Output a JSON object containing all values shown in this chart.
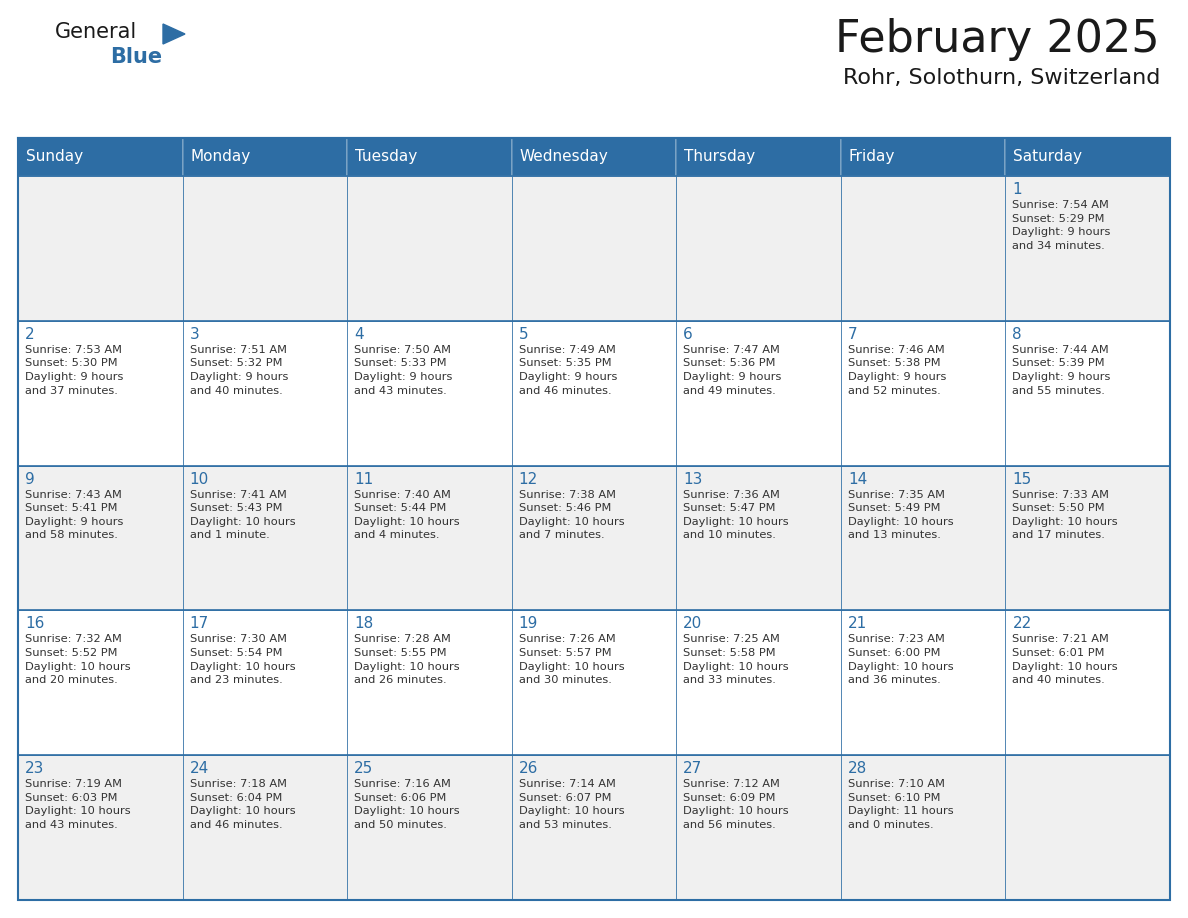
{
  "title": "February 2025",
  "subtitle": "Rohr, Solothurn, Switzerland",
  "days_of_week": [
    "Sunday",
    "Monday",
    "Tuesday",
    "Wednesday",
    "Thursday",
    "Friday",
    "Saturday"
  ],
  "header_bg": "#2d6da4",
  "header_text": "#ffffff",
  "row_bg_light": "#f0f0f0",
  "row_bg_white": "#ffffff",
  "border_color": "#2d6da4",
  "title_color": "#1a1a1a",
  "day_num_color": "#2d6da4",
  "text_color": "#333333",
  "calendar": [
    [
      null,
      null,
      null,
      null,
      null,
      null,
      {
        "day": "1",
        "sunrise": "7:54 AM",
        "sunset": "5:29 PM",
        "daylight": "9 hours\nand 34 minutes."
      }
    ],
    [
      {
        "day": "2",
        "sunrise": "7:53 AM",
        "sunset": "5:30 PM",
        "daylight": "9 hours\nand 37 minutes."
      },
      {
        "day": "3",
        "sunrise": "7:51 AM",
        "sunset": "5:32 PM",
        "daylight": "9 hours\nand 40 minutes."
      },
      {
        "day": "4",
        "sunrise": "7:50 AM",
        "sunset": "5:33 PM",
        "daylight": "9 hours\nand 43 minutes."
      },
      {
        "day": "5",
        "sunrise": "7:49 AM",
        "sunset": "5:35 PM",
        "daylight": "9 hours\nand 46 minutes."
      },
      {
        "day": "6",
        "sunrise": "7:47 AM",
        "sunset": "5:36 PM",
        "daylight": "9 hours\nand 49 minutes."
      },
      {
        "day": "7",
        "sunrise": "7:46 AM",
        "sunset": "5:38 PM",
        "daylight": "9 hours\nand 52 minutes."
      },
      {
        "day": "8",
        "sunrise": "7:44 AM",
        "sunset": "5:39 PM",
        "daylight": "9 hours\nand 55 minutes."
      }
    ],
    [
      {
        "day": "9",
        "sunrise": "7:43 AM",
        "sunset": "5:41 PM",
        "daylight": "9 hours\nand 58 minutes."
      },
      {
        "day": "10",
        "sunrise": "7:41 AM",
        "sunset": "5:43 PM",
        "daylight": "10 hours\nand 1 minute."
      },
      {
        "day": "11",
        "sunrise": "7:40 AM",
        "sunset": "5:44 PM",
        "daylight": "10 hours\nand 4 minutes."
      },
      {
        "day": "12",
        "sunrise": "7:38 AM",
        "sunset": "5:46 PM",
        "daylight": "10 hours\nand 7 minutes."
      },
      {
        "day": "13",
        "sunrise": "7:36 AM",
        "sunset": "5:47 PM",
        "daylight": "10 hours\nand 10 minutes."
      },
      {
        "day": "14",
        "sunrise": "7:35 AM",
        "sunset": "5:49 PM",
        "daylight": "10 hours\nand 13 minutes."
      },
      {
        "day": "15",
        "sunrise": "7:33 AM",
        "sunset": "5:50 PM",
        "daylight": "10 hours\nand 17 minutes."
      }
    ],
    [
      {
        "day": "16",
        "sunrise": "7:32 AM",
        "sunset": "5:52 PM",
        "daylight": "10 hours\nand 20 minutes."
      },
      {
        "day": "17",
        "sunrise": "7:30 AM",
        "sunset": "5:54 PM",
        "daylight": "10 hours\nand 23 minutes."
      },
      {
        "day": "18",
        "sunrise": "7:28 AM",
        "sunset": "5:55 PM",
        "daylight": "10 hours\nand 26 minutes."
      },
      {
        "day": "19",
        "sunrise": "7:26 AM",
        "sunset": "5:57 PM",
        "daylight": "10 hours\nand 30 minutes."
      },
      {
        "day": "20",
        "sunrise": "7:25 AM",
        "sunset": "5:58 PM",
        "daylight": "10 hours\nand 33 minutes."
      },
      {
        "day": "21",
        "sunrise": "7:23 AM",
        "sunset": "6:00 PM",
        "daylight": "10 hours\nand 36 minutes."
      },
      {
        "day": "22",
        "sunrise": "7:21 AM",
        "sunset": "6:01 PM",
        "daylight": "10 hours\nand 40 minutes."
      }
    ],
    [
      {
        "day": "23",
        "sunrise": "7:19 AM",
        "sunset": "6:03 PM",
        "daylight": "10 hours\nand 43 minutes."
      },
      {
        "day": "24",
        "sunrise": "7:18 AM",
        "sunset": "6:04 PM",
        "daylight": "10 hours\nand 46 minutes."
      },
      {
        "day": "25",
        "sunrise": "7:16 AM",
        "sunset": "6:06 PM",
        "daylight": "10 hours\nand 50 minutes."
      },
      {
        "day": "26",
        "sunrise": "7:14 AM",
        "sunset": "6:07 PM",
        "daylight": "10 hours\nand 53 minutes."
      },
      {
        "day": "27",
        "sunrise": "7:12 AM",
        "sunset": "6:09 PM",
        "daylight": "10 hours\nand 56 minutes."
      },
      {
        "day": "28",
        "sunrise": "7:10 AM",
        "sunset": "6:10 PM",
        "daylight": "11 hours\nand 0 minutes."
      },
      null
    ]
  ]
}
